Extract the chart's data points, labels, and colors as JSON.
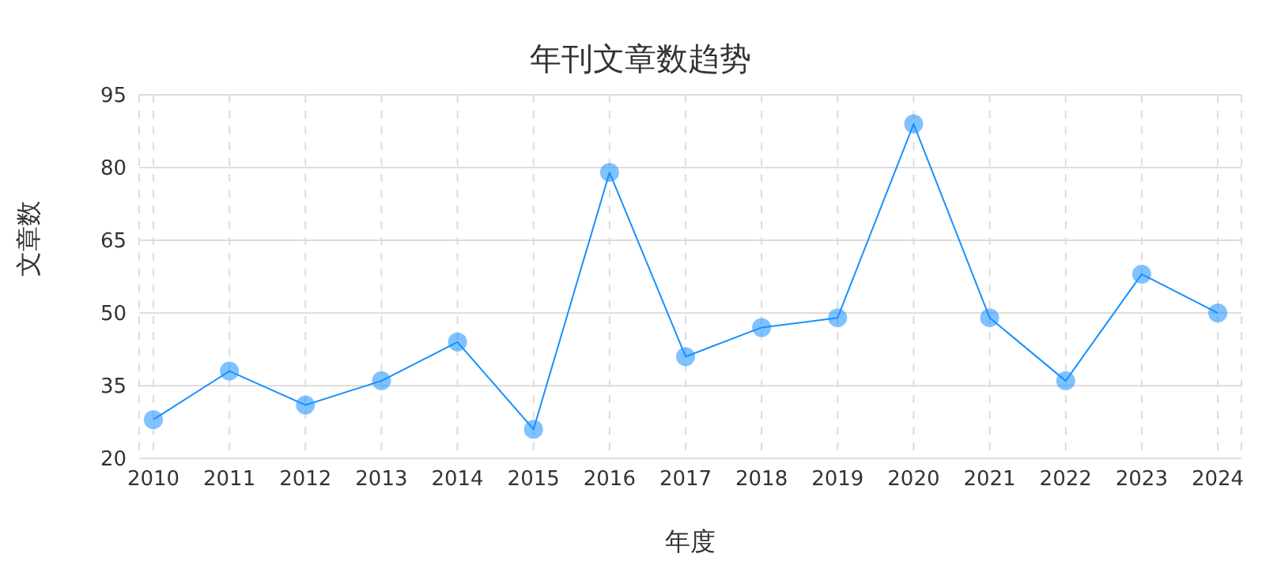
{
  "chart_data": {
    "type": "line",
    "title": "年刊文章数趋势",
    "xlabel": "年度",
    "ylabel": "文章数",
    "categories": [
      "2010",
      "2011",
      "2012",
      "2013",
      "2014",
      "2015",
      "2016",
      "2017",
      "2018",
      "2019",
      "2020",
      "2021",
      "2022",
      "2023",
      "2024"
    ],
    "series": [
      {
        "color": "#1890ff",
        "values": [
          28,
          38,
          31,
          36,
          44,
          26,
          79,
          41,
          47,
          49,
          89,
          49,
          36,
          58,
          50
        ]
      }
    ],
    "ylim": [
      20,
      95
    ],
    "yticks": [
      20,
      35,
      50,
      65,
      80,
      95
    ],
    "grid": true,
    "marker": "circle",
    "line_style": "solid",
    "legend": false
  }
}
